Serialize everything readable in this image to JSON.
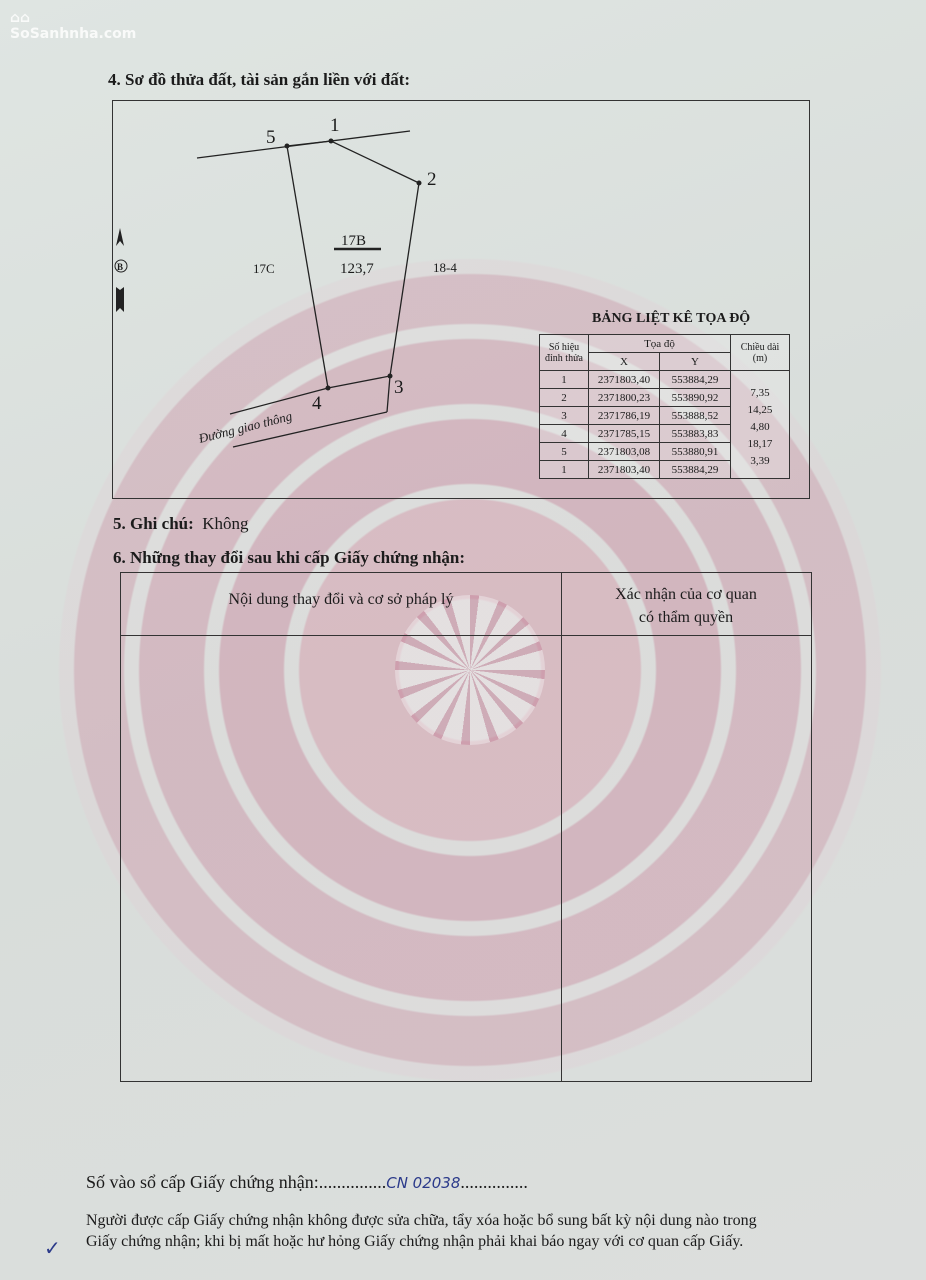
{
  "watermark": "SoSanhnha.com",
  "section4": {
    "title": "4. Sơ đồ thửa đất, tài sản gắn liền với đất:",
    "parcel_id": "17B",
    "area": "123,7",
    "neighbor_left": "17C",
    "neighbor_right": "18-4",
    "road_label": "Đường giao thông",
    "north_label": "B",
    "vertex_labels": [
      "1",
      "2",
      "3",
      "4",
      "5"
    ]
  },
  "coord_table": {
    "title": "BẢNG LIỆT KÊ TỌA ĐỘ",
    "headers": {
      "point": "Số hiệu đỉnh thửa",
      "coord": "Tọa độ",
      "x": "X",
      "y": "Y",
      "length": "Chiều dài (m)"
    },
    "rows": [
      {
        "point": "1",
        "x": "2371803,40",
        "y": "553884,29"
      },
      {
        "point": "2",
        "x": "2371800,23",
        "y": "553890,92"
      },
      {
        "point": "3",
        "x": "2371786,19",
        "y": "553888,52"
      },
      {
        "point": "4",
        "x": "2371785,15",
        "y": "553883,83"
      },
      {
        "point": "5",
        "x": "2371803,08",
        "y": "553880,91"
      },
      {
        "point": "1",
        "x": "2371803,40",
        "y": "553884,29"
      }
    ],
    "lengths": [
      "7,35",
      "14,25",
      "4,80",
      "18,17",
      "3,39"
    ]
  },
  "section5": {
    "label": "5. Ghi chú:",
    "value": "Không"
  },
  "section6": {
    "title": "6. Những thay đổi sau khi cấp Giấy chứng nhận:",
    "col1": "Nội dung thay đổi và cơ sở pháp lý",
    "col2_line1": "Xác nhận của cơ quan",
    "col2_line2": "có thẩm quyền"
  },
  "footer": {
    "register_label": "Số vào sổ cấp Giấy chứng nhận:",
    "register_dots_before": "...............",
    "register_value": "CN 02038",
    "register_dots_after": "...............",
    "notice_line1": "Người được cấp Giấy chứng nhận không được sửa chữa, tẩy xóa hoặc bổ sung bất kỳ nội dung nào trong",
    "notice_line2": "Giấy chứng nhận; khi bị mất hoặc hư hỏng Giấy chứng nhận phải khai báo ngay với cơ quan cấp Giấy."
  }
}
